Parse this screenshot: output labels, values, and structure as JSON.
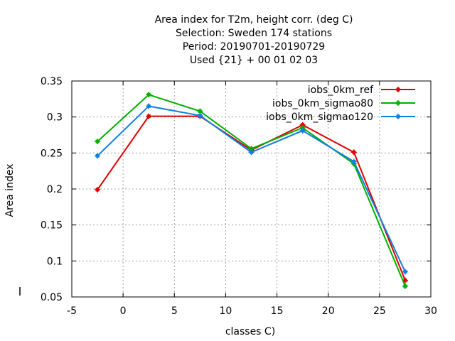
{
  "chart_data": {
    "type": "line",
    "title": [
      "Area index  for T2m, height corr. (deg C)",
      "Selection: Sweden    174 stations",
      "Period: 20190701-20190729",
      "Used {21} + 00 01 02 03"
    ],
    "xlabel": "classes C)",
    "ylabel": "Area index",
    "xlim": [
      -5,
      30
    ],
    "ylim": [
      0.05,
      0.35
    ],
    "xticks": [
      -5,
      0,
      5,
      10,
      15,
      20,
      25,
      30
    ],
    "yticks": [
      0.05,
      0.1,
      0.15,
      0.2,
      0.25,
      0.3,
      0.35
    ],
    "xtick_labels": [
      "-5",
      "0",
      "5",
      "10",
      "15",
      "20",
      "25",
      "30"
    ],
    "ytick_labels": [
      "0.05",
      "0.1",
      "0.15",
      "0.2",
      "0.25",
      "0.3",
      "0.35"
    ],
    "grid": true,
    "legend_position": "top-right",
    "x": [
      -2.5,
      2.5,
      7.5,
      12.5,
      17.5,
      22.5,
      27.5
    ],
    "series": [
      {
        "name": "iobs_0km_ref",
        "color": "#e00000",
        "values": [
          0.199,
          0.301,
          0.301,
          0.254,
          0.289,
          0.251,
          0.073
        ]
      },
      {
        "name": "iobs_0km_sigmao80",
        "color": "#00b000",
        "values": [
          0.266,
          0.331,
          0.308,
          0.256,
          0.285,
          0.235,
          0.065
        ]
      },
      {
        "name": "iobs_0km_sigmao120",
        "color": "#1080e0",
        "values": [
          0.246,
          0.315,
          0.302,
          0.251,
          0.281,
          0.238,
          0.085
        ]
      }
    ]
  }
}
